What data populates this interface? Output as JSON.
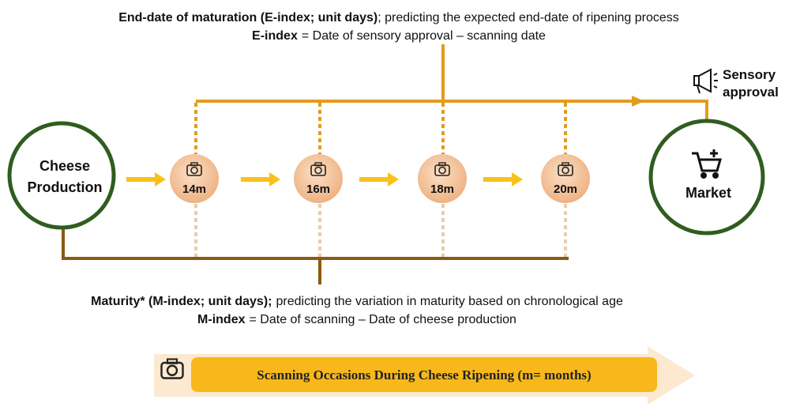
{
  "e_index": {
    "title_bold": "End-date of maturation (E-index; unit days)",
    "title_rest": "; predicting the expected end-date of ripening process",
    "formula_term": "E-index",
    "formula_rest": "= Date of sensory approval – scanning date"
  },
  "nodes": {
    "production": [
      "Cheese",
      "Production"
    ],
    "scans": [
      "14m",
      "16m",
      "18m",
      "20m"
    ],
    "market": "Market",
    "sensory": [
      "Sensory",
      "approval"
    ]
  },
  "m_index": {
    "title_bold": "Maturity* (M-index; unit days);",
    "title_rest": "predicting the variation in maturity based on chronological age",
    "formula_term": "M-index",
    "formula_rest": "= Date of scanning – Date of cheese production"
  },
  "banner": "Scanning Occasions During Cheese Ripening (m= months)"
}
